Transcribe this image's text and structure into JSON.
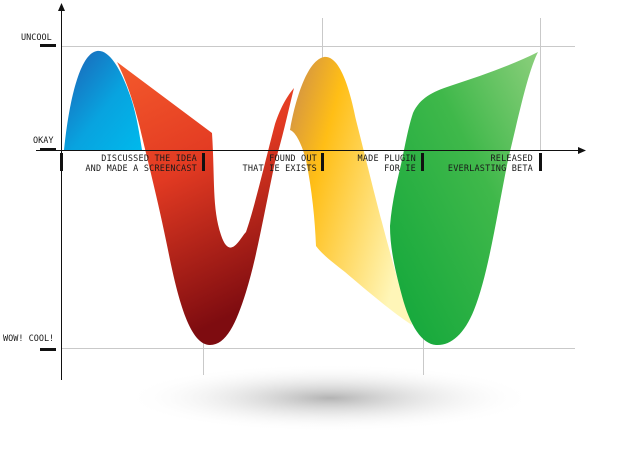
{
  "chart_data": {
    "type": "area",
    "title": "",
    "xlabel": "",
    "ylabel": "",
    "y_levels": [
      {
        "label": "UNCOOL",
        "value": 1
      },
      {
        "label": "OKAY",
        "value": 0
      },
      {
        "label": "WOW! COOL!",
        "value": -2
      }
    ],
    "ylim": [
      -2.2,
      1.4
    ],
    "milestones": [
      {
        "id": "m1",
        "lines": [
          "DISCUSSED THE IDEA",
          "AND MADE A SCREENCAST"
        ]
      },
      {
        "id": "m2",
        "lines": [
          "FOUND OUT",
          "THAT IE EXISTS"
        ]
      },
      {
        "id": "m3",
        "lines": [
          "MADE PLUGIN",
          "FOR IE"
        ]
      },
      {
        "id": "m4",
        "lines": [
          "RELEASED",
          "EVERLASTING BETA"
        ]
      }
    ],
    "series": [
      {
        "id": "blue",
        "colors": [
          "#1e63b8",
          "#00aee6"
        ]
      },
      {
        "id": "red",
        "colors": [
          "#f0582a",
          "#8a0f12"
        ]
      },
      {
        "id": "yellow",
        "colors": [
          "#e8a23a",
          "#fff2a8"
        ]
      },
      {
        "id": "green",
        "colors": [
          "#1aaa3d",
          "#7fca6e"
        ]
      }
    ],
    "grid": true,
    "legend": "none"
  }
}
